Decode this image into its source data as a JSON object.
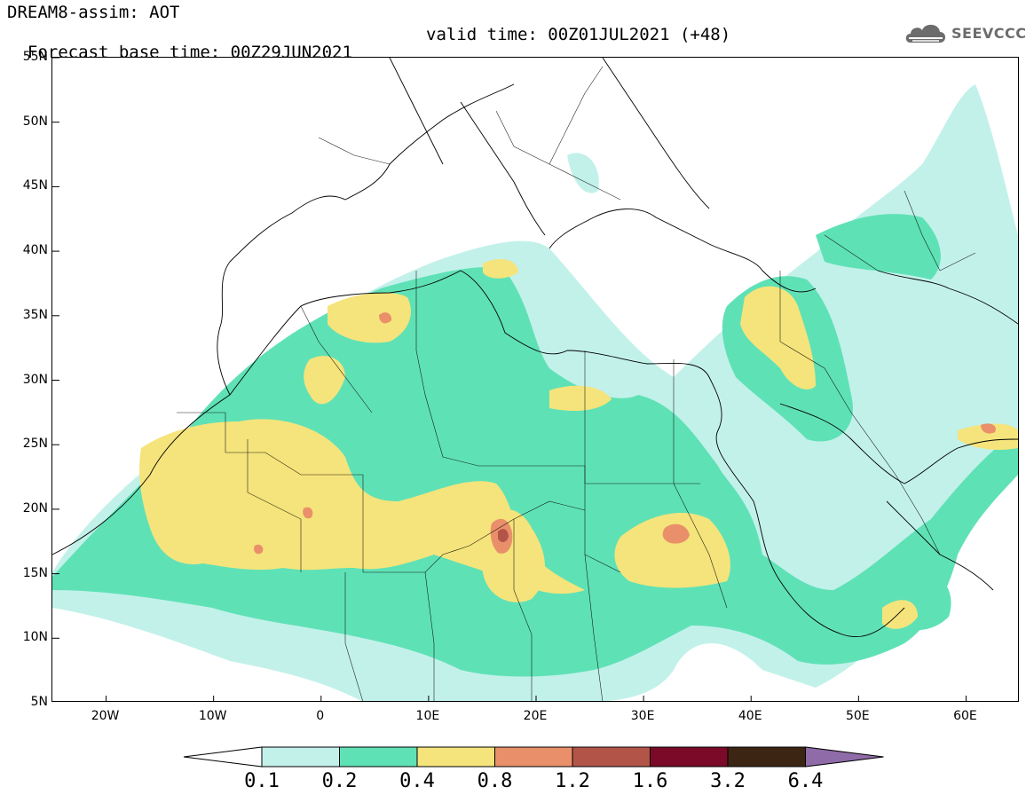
{
  "header": {
    "title": "DREAM8-assim: AOT",
    "base_time": "Forecast base time: 00Z29JUN2021",
    "valid_time": "valid time: 00Z01JUL2021 (+48)"
  },
  "logo": {
    "icon": "cloud-icon",
    "text": "SEEVCCC"
  },
  "axes": {
    "lat_labels": [
      "55N",
      "50N",
      "45N",
      "40N",
      "35N",
      "30N",
      "25N",
      "20N",
      "15N",
      "10N",
      "5N"
    ],
    "lon_labels": [
      "20W",
      "10W",
      "0",
      "10E",
      "20E",
      "30E",
      "40E",
      "50E",
      "60E"
    ],
    "lat_range": [
      5,
      55
    ],
    "lon_range": [
      -25,
      65
    ]
  },
  "colorbar": {
    "labels": [
      "0.1",
      "0.2",
      "0.4",
      "0.8",
      "1.2",
      "1.6",
      "3.2",
      "6.4"
    ],
    "colors": [
      "#ffffff",
      "#c2f1ea",
      "#5fe1b6",
      "#f5e47b",
      "#e9906a",
      "#b25548",
      "#7a0a28",
      "#3d2514",
      "#8f6ba8"
    ]
  },
  "map": {
    "fill_colors": {
      "low": "#c2f1ea",
      "mid": "#5fe1b6",
      "high": "#f5e47b",
      "vhigh": "#e9906a",
      "xhigh": "#b25548"
    }
  }
}
